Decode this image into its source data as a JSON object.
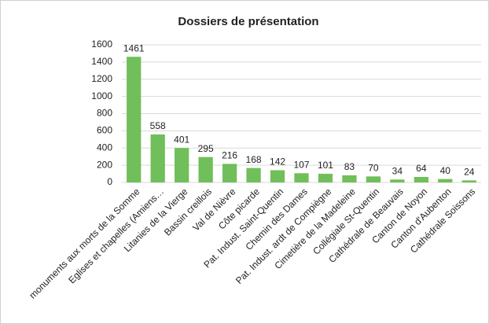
{
  "chart_data": {
    "type": "bar",
    "title": "Dossiers de présentation",
    "categories": [
      "monuments aux morts de la Somme",
      "Eglises et chapelles (Amiens…",
      "Litanies de la Vierge",
      "Bassin creillois",
      "Val de Nièvre",
      "Côte picarde",
      "Pat. Indust. Saint-Quentin",
      "Chemin des Dames",
      "Pat. Indust. ardt de Compiègne",
      "Cimetière de la Madeleine",
      "Collégiale St-Quentin",
      "Cathédrale de Beauvais",
      "Canton de Noyon",
      "Canton d'Aubenton",
      "Cathédrale Soissons"
    ],
    "values": [
      1461,
      558,
      401,
      295,
      216,
      168,
      142,
      107,
      101,
      83,
      70,
      34,
      64,
      40,
      24
    ],
    "color": "#70bf5a",
    "ylim": [
      0,
      1600
    ],
    "yticks": [
      0,
      200,
      400,
      600,
      800,
      1000,
      1200,
      1400,
      1600
    ],
    "grid": true
  }
}
